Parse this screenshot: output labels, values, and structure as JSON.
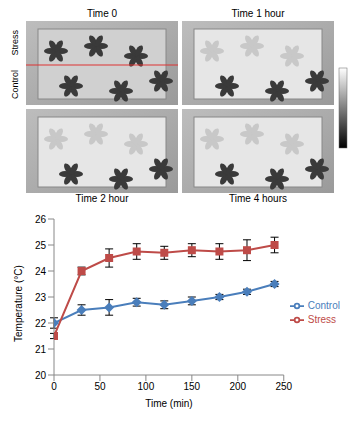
{
  "image_panels": {
    "titles": [
      "Time 0",
      "Time 1 hour",
      "Time 2 hour",
      "Time 4 hours"
    ],
    "side_labels": [
      "Stress",
      "Control"
    ]
  },
  "chart_data": {
    "type": "line",
    "x_label": "Time (min)",
    "y_label": "Temperature (°C)",
    "x": [
      0,
      30,
      60,
      90,
      120,
      150,
      180,
      210,
      240
    ],
    "series": [
      {
        "name": "Control",
        "color": "#4a7ebb",
        "marker": "diamond",
        "values": [
          22.0,
          22.5,
          22.6,
          22.8,
          22.7,
          22.85,
          23.0,
          23.2,
          23.5
        ],
        "errors": [
          0.2,
          0.2,
          0.3,
          0.15,
          0.15,
          0.15,
          0.1,
          0.1,
          0.1
        ]
      },
      {
        "name": "Stress",
        "color": "#be4b48",
        "marker": "square",
        "values": [
          21.5,
          24.0,
          24.5,
          24.75,
          24.7,
          24.8,
          24.75,
          24.8,
          25.0
        ],
        "errors": [
          0.1,
          0.15,
          0.35,
          0.3,
          0.25,
          0.25,
          0.3,
          0.4,
          0.3
        ]
      }
    ],
    "xlim": [
      0,
      250
    ],
    "xticks": [
      0,
      50,
      100,
      150,
      200,
      250
    ],
    "ylim": [
      20,
      26
    ],
    "yticks": [
      20,
      21,
      22,
      23,
      24,
      25,
      26
    ],
    "grid": false,
    "legend": "right"
  }
}
